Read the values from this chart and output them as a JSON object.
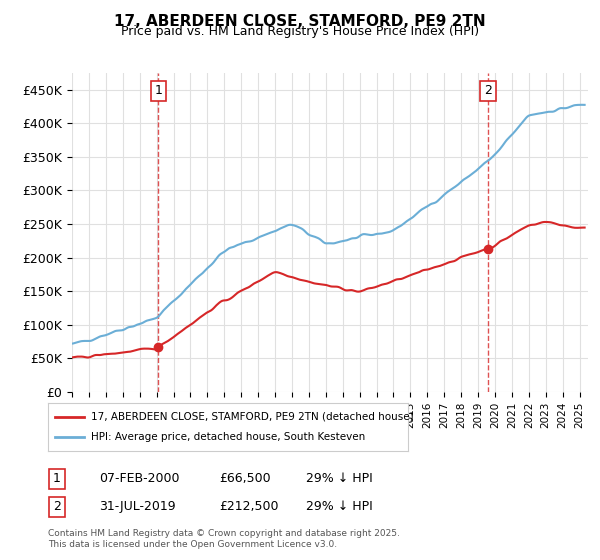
{
  "title": "17, ABERDEEN CLOSE, STAMFORD, PE9 2TN",
  "subtitle": "Price paid vs. HM Land Registry's House Price Index (HPI)",
  "ylabel_ticks": [
    "£0",
    "£50K",
    "£100K",
    "£150K",
    "£200K",
    "£250K",
    "£300K",
    "£350K",
    "£400K",
    "£450K"
  ],
  "ytick_values": [
    0,
    50000,
    100000,
    150000,
    200000,
    250000,
    300000,
    350000,
    400000,
    450000
  ],
  "ylim": [
    0,
    475000
  ],
  "xlim_start": 1995.0,
  "xlim_end": 2025.5,
  "hpi_color": "#6baed6",
  "price_color": "#d62728",
  "dashed_color": "#d62728",
  "marker1_date": 2000.1,
  "marker1_price": 66500,
  "marker2_date": 2019.58,
  "marker2_price": 212500,
  "annotation1_label": "1",
  "annotation2_label": "2",
  "legend_line1": "17, ABERDEEN CLOSE, STAMFORD, PE9 2TN (detached house)",
  "legend_line2": "HPI: Average price, detached house, South Kesteven",
  "table_row1": [
    "1",
    "07-FEB-2000",
    "£66,500",
    "29% ↓ HPI"
  ],
  "table_row2": [
    "2",
    "31-JUL-2019",
    "£212,500",
    "29% ↓ HPI"
  ],
  "footer": "Contains HM Land Registry data © Crown copyright and database right 2025.\nThis data is licensed under the Open Government Licence v3.0.",
  "background_color": "#ffffff",
  "grid_color": "#e0e0e0"
}
